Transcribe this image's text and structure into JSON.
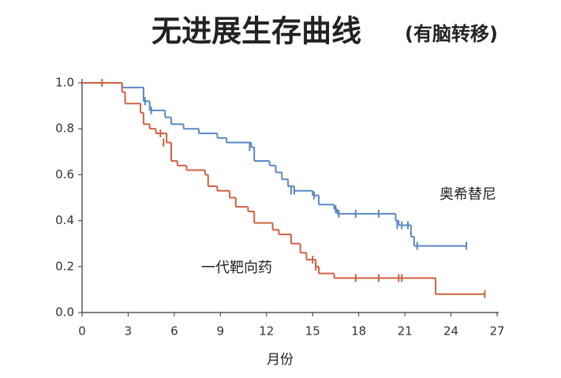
{
  "chart_data": {
    "type": "survival",
    "title": "无进展生存曲线",
    "subtitle": "(有脑转移)",
    "xlabel": "月份",
    "xlim": [
      0,
      27
    ],
    "xticks": [
      0,
      3,
      6,
      9,
      12,
      15,
      18,
      21,
      24,
      27
    ],
    "ylim": [
      0,
      1
    ],
    "yticks": [
      {
        "value": 0,
        "label": "0.0"
      },
      0.2,
      0.4,
      0.6,
      0.8,
      {
        "value": 1,
        "label": "1.0"
      }
    ],
    "series": [
      {
        "name": "奥希替尼",
        "color": "#5b88c4",
        "x": [
          0,
          2.6,
          4.0,
          4.4,
          5.4,
          5.8,
          6.6,
          7.6,
          8.8,
          9.4,
          11.0,
          11.2,
          12.2,
          12.6,
          13.0,
          13.4,
          13.8,
          15.0,
          15.4,
          16.4,
          16.6,
          20.4,
          20.6,
          21.4,
          21.6,
          25.0
        ],
        "values": [
          1.0,
          0.98,
          0.92,
          0.88,
          0.85,
          0.82,
          0.8,
          0.78,
          0.76,
          0.74,
          0.72,
          0.66,
          0.64,
          0.61,
          0.58,
          0.55,
          0.53,
          0.51,
          0.47,
          0.45,
          0.43,
          0.4,
          0.38,
          0.33,
          0.29,
          0.29
        ],
        "censor_x": [
          4.1,
          4.5,
          10.9,
          13.6,
          13.8,
          15.1,
          16.5,
          16.7,
          17.8,
          19.3,
          20.5,
          20.8,
          21.2,
          21.8,
          25.0
        ],
        "censor_values": [
          0.92,
          0.88,
          0.72,
          0.53,
          0.53,
          0.51,
          0.45,
          0.43,
          0.43,
          0.43,
          0.38,
          0.38,
          0.38,
          0.29,
          0.29
        ]
      },
      {
        "name": "一代靶向药",
        "color": "#d0603f",
        "x": [
          0,
          2.6,
          2.8,
          3.8,
          4.0,
          4.4,
          4.8,
          5.5,
          5.8,
          6.2,
          6.8,
          8.0,
          8.2,
          8.8,
          9.6,
          10.0,
          10.8,
          11.2,
          12.4,
          12.8,
          13.6,
          14.2,
          14.6,
          15.2,
          15.4,
          16.4,
          23.0,
          26.2
        ],
        "values": [
          1.0,
          0.96,
          0.91,
          0.87,
          0.82,
          0.8,
          0.78,
          0.74,
          0.66,
          0.64,
          0.62,
          0.6,
          0.55,
          0.53,
          0.5,
          0.46,
          0.44,
          0.39,
          0.36,
          0.34,
          0.3,
          0.26,
          0.23,
          0.2,
          0.17,
          0.15,
          0.08,
          0.08
        ],
        "censor_x": [
          1.3,
          5.1,
          5.3,
          15.0,
          15.2,
          17.8,
          19.3,
          20.6,
          20.8,
          26.2
        ],
        "censor_values": [
          1.0,
          0.78,
          0.74,
          0.23,
          0.2,
          0.15,
          0.15,
          0.15,
          0.15,
          0.08
        ]
      }
    ]
  }
}
